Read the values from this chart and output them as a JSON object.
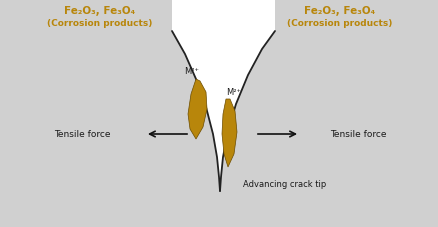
{
  "bg_color": "#ffffff",
  "crack_fill_color": "#d0d0d0",
  "top_bar_color": "#d0d0d0",
  "oxide_color": "#b8860b",
  "oxide_edge_color": "#6b4c00",
  "text_color_gold": "#b8860b",
  "text_color_black": "#1a1a1a",
  "title_left": "Fe₂O₃, Fe₃O₄",
  "title_right": "Fe₂O₃, Fe₃O₄",
  "subtitle_left": "(Corrosion products)",
  "subtitle_right": "(Corrosion products)",
  "label_m2plus_left": "M²⁺",
  "label_m2plus_right": "M²⁺",
  "label_tensile_left": "Tensile force",
  "label_tensile_right": "Tensile force",
  "label_crack": "Advancing crack tip",
  "figsize": [
    4.39,
    2.28
  ],
  "dpi": 100
}
